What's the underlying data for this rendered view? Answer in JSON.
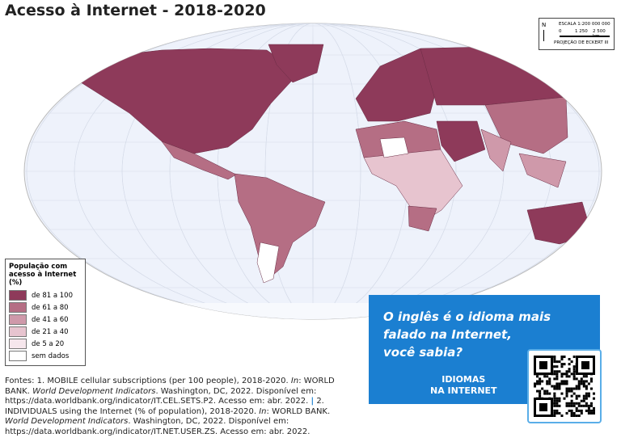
{
  "header": {
    "title": "Acesso à Internet - 2018-2020"
  },
  "scale_box": {
    "north": "N",
    "scale": "ESCALA 1:200 000 000",
    "ticks": [
      "0",
      "1 250",
      "2 500 km"
    ],
    "projection": "PROJEÇÃO DE ECKERT III"
  },
  "legend": {
    "title": "População com acesso à Internet (%)",
    "items": [
      {
        "label": "de 81 a 100",
        "color": "#8e3a5a"
      },
      {
        "label": "de 61 a 80",
        "color": "#b56e84"
      },
      {
        "label": "de 41 a 60",
        "color": "#cf99aa"
      },
      {
        "label": "de 21 a 40",
        "color": "#e7c4cf"
      },
      {
        "label": "de 5 a 20",
        "color": "#f6e6ec"
      },
      {
        "label": "sem dados",
        "color": "#ffffff"
      }
    ]
  },
  "info_box": {
    "question": [
      "O inglês é o idioma mais",
      "falado na Internet,",
      "você sabia?"
    ],
    "link": [
      "IDIOMAS",
      "NA INTERNET"
    ]
  },
  "sources": [
    "Fontes: 1. MOBILE cellular subscriptions (per 100 people), 2018-2020. ",
    "In",
    ": WORLD BANK. ",
    "World Development Indicators",
    ". Washington, DC, 2022. Disponível em: https://data.worldbank.org/indicator/IT.CEL.SETS.P2. Acesso em: abr. 2022. ",
    "|",
    " 2. INDIVIDUALS using the Internet (% of population), 2018-2020. ",
    "In",
    ": WORLD BANK. ",
    "World Development Indicators",
    ". Washington, DC, 2022. Disponível em: https://data.worldbank.org/indicator/IT.NET.USER.ZS. Acesso em: abr. 2022."
  ]
}
